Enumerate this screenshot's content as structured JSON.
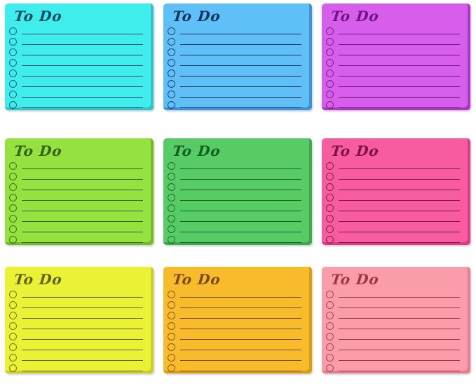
{
  "board": {
    "rows": 3,
    "cols": 3,
    "background": "#ffffff"
  },
  "note_title": "To Do",
  "lines_per_note": 8,
  "notes": [
    {
      "name": "cyan",
      "bg": "#3FEDED",
      "ink": "#0E4A63",
      "edge": "#2FC3CB"
    },
    {
      "name": "blue",
      "bg": "#5FC0F7",
      "ink": "#15335C",
      "edge": "#3A92D8"
    },
    {
      "name": "orchid",
      "bg": "#D75EEB",
      "ink": "#6E1583",
      "edge": "#AC35C8"
    },
    {
      "name": "chartreuse",
      "bg": "#95E13F",
      "ink": "#2F6414",
      "edge": "#74BC27"
    },
    {
      "name": "green",
      "bg": "#57CB66",
      "ink": "#14611F",
      "edge": "#3EA94D"
    },
    {
      "name": "hot-pink",
      "bg": "#F75BA0",
      "ink": "#7E1145",
      "edge": "#DD3B85"
    },
    {
      "name": "yellow",
      "bg": "#EBF235",
      "ink": "#60620E",
      "edge": "#C8CF27"
    },
    {
      "name": "amber",
      "bg": "#F7BB2B",
      "ink": "#7A4A0E",
      "edge": "#D99D14"
    },
    {
      "name": "light-pink",
      "bg": "#FA9CAA",
      "ink": "#9C3645",
      "edge": "#E37E8E"
    }
  ]
}
